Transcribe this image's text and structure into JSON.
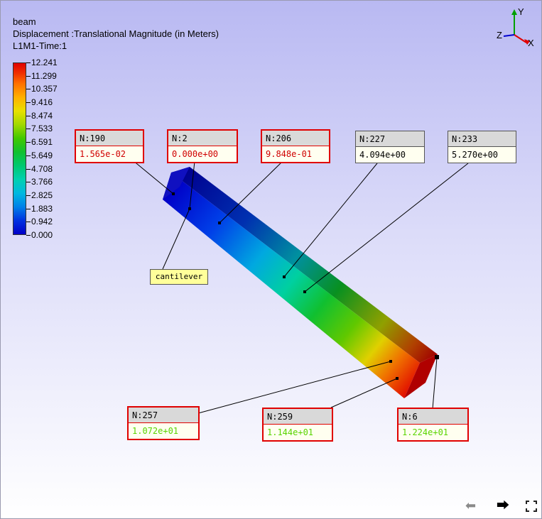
{
  "header": {
    "model": "beam",
    "result": "Displacement :Translational Magnitude (in Meters)",
    "case": "L1M1-Time:1"
  },
  "legend": {
    "ticks": [
      "12.241",
      "11.299",
      "10.357",
      "9.416",
      "8.474",
      "7.533",
      "6.591",
      "5.649",
      "4.708",
      "3.766",
      "2.825",
      "1.883",
      "0.942",
      "0.000"
    ]
  },
  "triad": {
    "y_label": "Y",
    "z_label": "Z",
    "x_label": "X"
  },
  "callouts": [
    {
      "node": "N:190",
      "value": "1.565e-02"
    },
    {
      "node": "N:2",
      "value": "0.000e+00"
    },
    {
      "node": "N:206",
      "value": "9.848e-01"
    },
    {
      "node": "N:227",
      "value": "4.094e+00"
    },
    {
      "node": "N:233",
      "value": "5.270e+00"
    },
    {
      "node": "N:257",
      "value": "1.072e+01"
    },
    {
      "node": "N:259",
      "value": "1.144e+01"
    },
    {
      "node": "N:6",
      "value": "1.224e+01"
    }
  ],
  "annotation": "cantilever",
  "nav": {
    "prev_icon": "arrow-left-icon",
    "next_icon": "arrow-right-icon",
    "expand_icon": "expand-icon"
  }
}
